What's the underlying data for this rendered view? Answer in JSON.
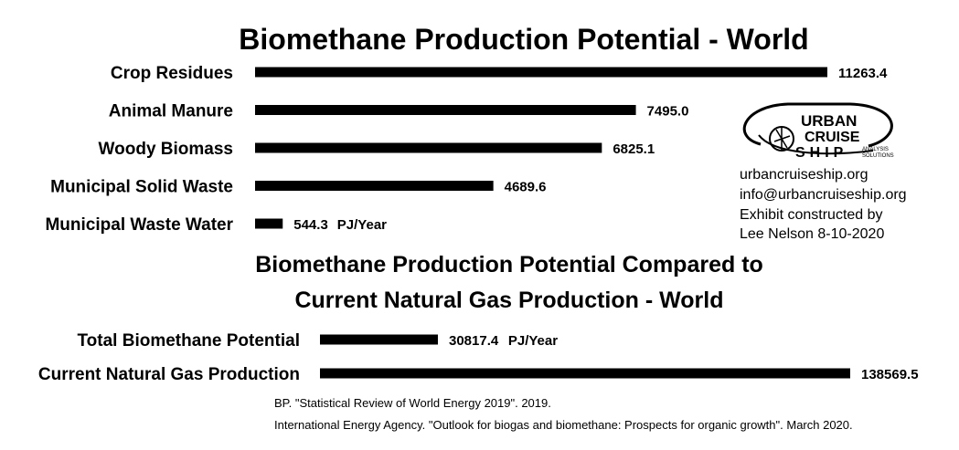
{
  "chart_data": [
    {
      "type": "bar",
      "orientation": "horizontal",
      "title": "Biomethane Production Potential - World",
      "categories": [
        "Crop Residues",
        "Animal Manure",
        "Woody Biomass",
        "Municipal Solid Waste",
        "Municipal Waste Water"
      ],
      "values": [
        11263.4,
        7495.0,
        6825.1,
        4689.6,
        544.3
      ],
      "value_labels": [
        "11263.4",
        "7495.0",
        "6825.1",
        "4689.6",
        "544.3"
      ],
      "unit": "PJ/Year",
      "color": "#000000"
    },
    {
      "type": "bar",
      "orientation": "horizontal",
      "title": "Biomethane Production Potential Compared to Current Natural Gas Production - World",
      "title_lines": [
        "Biomethane Production Potential Compared to",
        "Current Natural Gas Production - World"
      ],
      "categories": [
        "Total Biomethane Potential",
        "Current Natural Gas Production"
      ],
      "values": [
        30817.4,
        138569.5
      ],
      "value_labels": [
        "30817.4",
        "138569.5"
      ],
      "unit": "PJ/Year",
      "color": "#000000"
    }
  ],
  "logo": {
    "line1": "URBAN",
    "line2": "CRUISE",
    "line3": "SHIP",
    "tag1": "ANALYSIS",
    "tag2": "SOLUTIONS"
  },
  "info_lines": [
    "urbancruiseship.org",
    "info@urbancruiseship.org",
    "Exhibit constructed by",
    "Lee Nelson 8-10-2020"
  ],
  "sources": [
    "BP. \"Statistical Review of World Energy 2019\". 2019.",
    "International Energy Agency. \"Outlook for biogas and biomethane: Prospects for organic growth\". March 2020."
  ]
}
